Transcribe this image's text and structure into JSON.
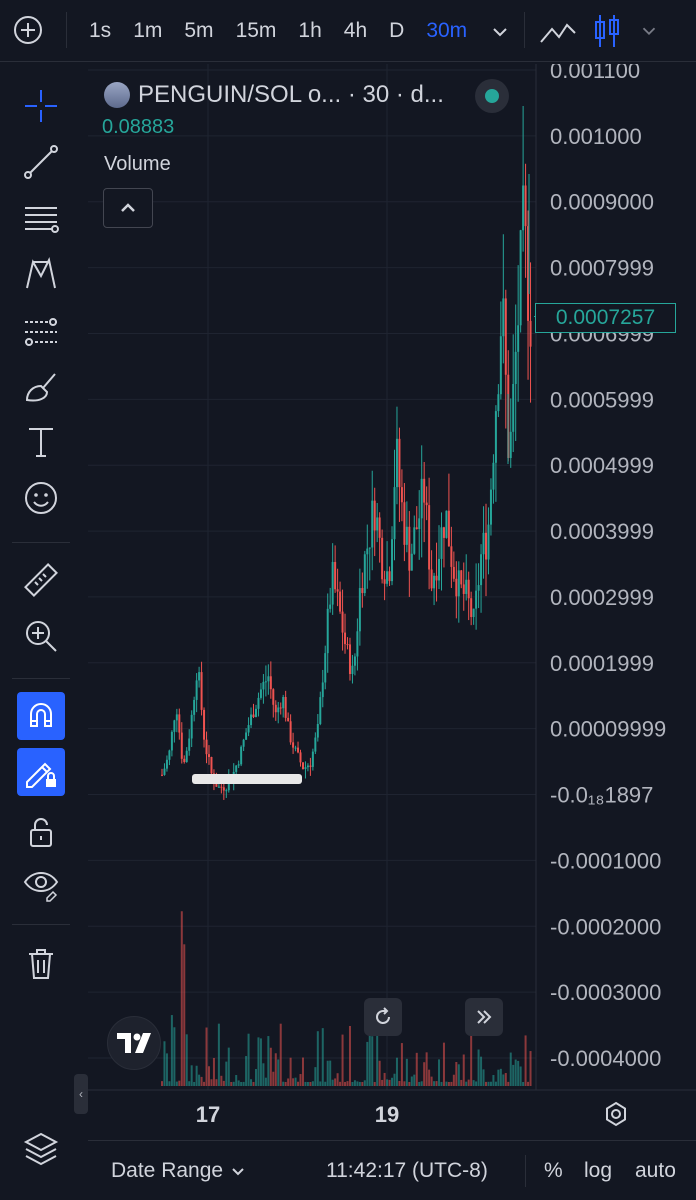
{
  "toolbar": {
    "intervals": [
      "1s",
      "1m",
      "5m",
      "15m",
      "1h",
      "4h",
      "D",
      "30m"
    ],
    "active_interval": "30m"
  },
  "legend": {
    "symbol": "PENGUIN/SOL o... · 30 · d...",
    "value": "0.08883",
    "volume_label": "Volume"
  },
  "price_axis": {
    "labels": [
      "0.001100",
      "0.001000",
      "0.0009000",
      "0.0007999",
      "0.0006999",
      "0.0005999",
      "0.0004999",
      "0.0003999",
      "0.0002999",
      "0.0001999",
      "0.00009999",
      "-0.0₁₈1897",
      "-0.0001000",
      "-0.0002000",
      "-0.0003000",
      "-0.0004000"
    ],
    "current_price": "0.0007257"
  },
  "time_axis": {
    "labels": [
      "17",
      "19"
    ]
  },
  "bottom": {
    "date_range": "Date Range",
    "clock": "11:42:17 (UTC-8)",
    "percent": "%",
    "log": "log",
    "auto": "auto"
  },
  "colors": {
    "up": "#26a69a",
    "down": "#ef5350",
    "accent": "#2962ff",
    "bg": "#131722"
  },
  "sidebar_tools": [
    "crosshair-icon",
    "trendline-icon",
    "fib-icon",
    "pattern-icon",
    "forecast-icon",
    "brush-icon",
    "text-icon",
    "emoji-icon",
    "ruler-icon",
    "zoom-in-icon",
    "magnet-icon",
    "lock-drawing-icon",
    "unlock-icon",
    "eye-icon",
    "trash-icon"
  ],
  "chart_data": {
    "type": "candlestick",
    "price_range": [
      -0.00045,
      0.0011
    ],
    "current_price": 0.0007257,
    "price_path": [
      3e-05,
      6e-05,
      0.00014,
      4e-05,
      0.0001,
      0.0002,
      8e-05,
      3e-05,
      1e-05,
      1.5e-05,
      3e-05,
      6e-05,
      0.0001,
      0.00013,
      0.00016,
      0.00018,
      0.00012,
      0.00015,
      9e-05,
      6e-05,
      4e-05,
      5e-05,
      0.0001,
      0.00022,
      0.00033,
      0.00028,
      0.00022,
      0.00018,
      0.00032,
      0.00038,
      0.00044,
      0.00036,
      0.00033,
      0.00052,
      0.00042,
      0.00036,
      0.00041,
      0.00046,
      0.00032,
      0.00037,
      0.00043,
      0.00035,
      0.00031,
      0.0003,
      0.00026,
      0.00036,
      0.0004,
      0.00058,
      0.00075,
      0.0005,
      0.00068,
      0.00086,
      0.00073
    ]
  }
}
